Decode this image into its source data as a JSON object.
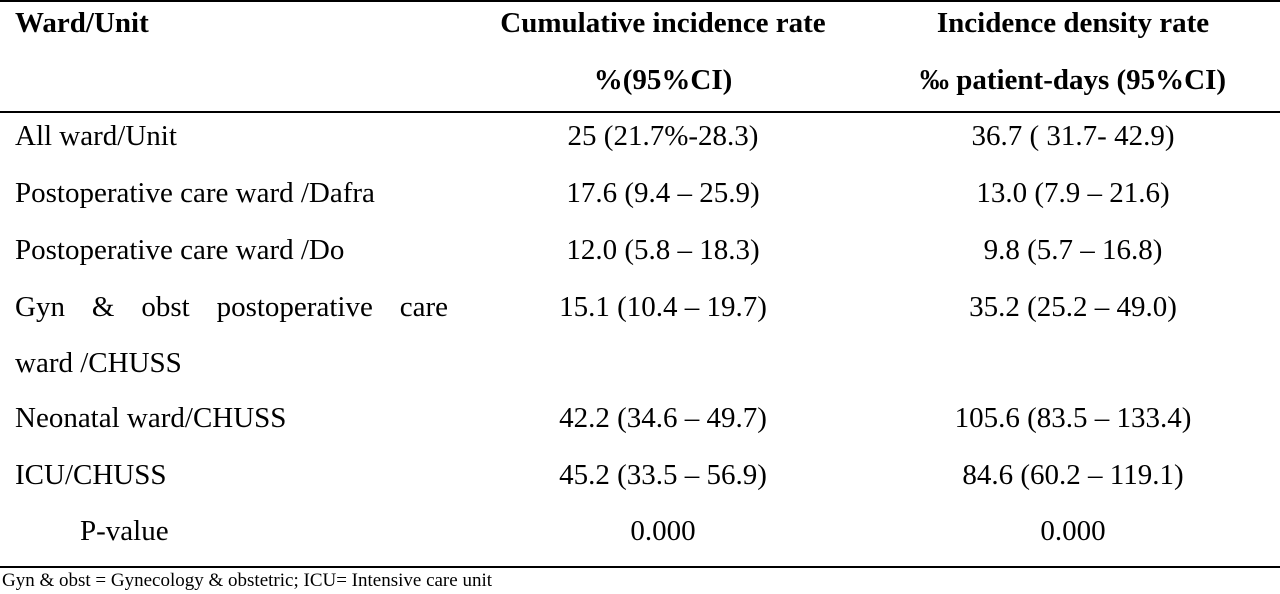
{
  "header": {
    "col1": "Ward/Unit",
    "col2_line1": "Cumulative incidence rate",
    "col2_line2": "%(95%CI)",
    "col3_line1": "Incidence density rate",
    "col3_line2": "‰ patient-days (95%CI)"
  },
  "rows": [
    {
      "ward": "All ward/Unit",
      "cir": "25 (21.7%-28.3)",
      "idr": "36.7 ( 31.7- 42.9)"
    },
    {
      "ward": "Postoperative care ward /Dafra",
      "cir": "17.6 (9.4 – 25.9)",
      "idr": "13.0 (7.9 – 21.6)"
    },
    {
      "ward": "Postoperative care ward /Do",
      "cir": "12.0 (5.8 – 18.3)",
      "idr": "9.8 (5.7 – 16.8)"
    },
    {
      "ward_line1": "Gyn & obst postoperative care",
      "ward_line2": "ward /CHUSS",
      "cir": "15.1 (10.4 – 19.7)",
      "idr": "35.2 (25.2 – 49.0)"
    },
    {
      "ward": "Neonatal ward/CHUSS",
      "cir": "42.2 (34.6 – 49.7)",
      "idr": "105.6 (83.5 – 133.4)"
    },
    {
      "ward": "ICU/CHUSS",
      "cir": "45.2 (33.5 – 56.9)",
      "idr": "84.6 (60.2 – 119.1)"
    }
  ],
  "pvalue": {
    "label": "P-value",
    "cir": "0.000",
    "idr": "0.000"
  },
  "footnote": "Gyn & obst = Gynecology & obstetric; ICU= Intensive care unit"
}
